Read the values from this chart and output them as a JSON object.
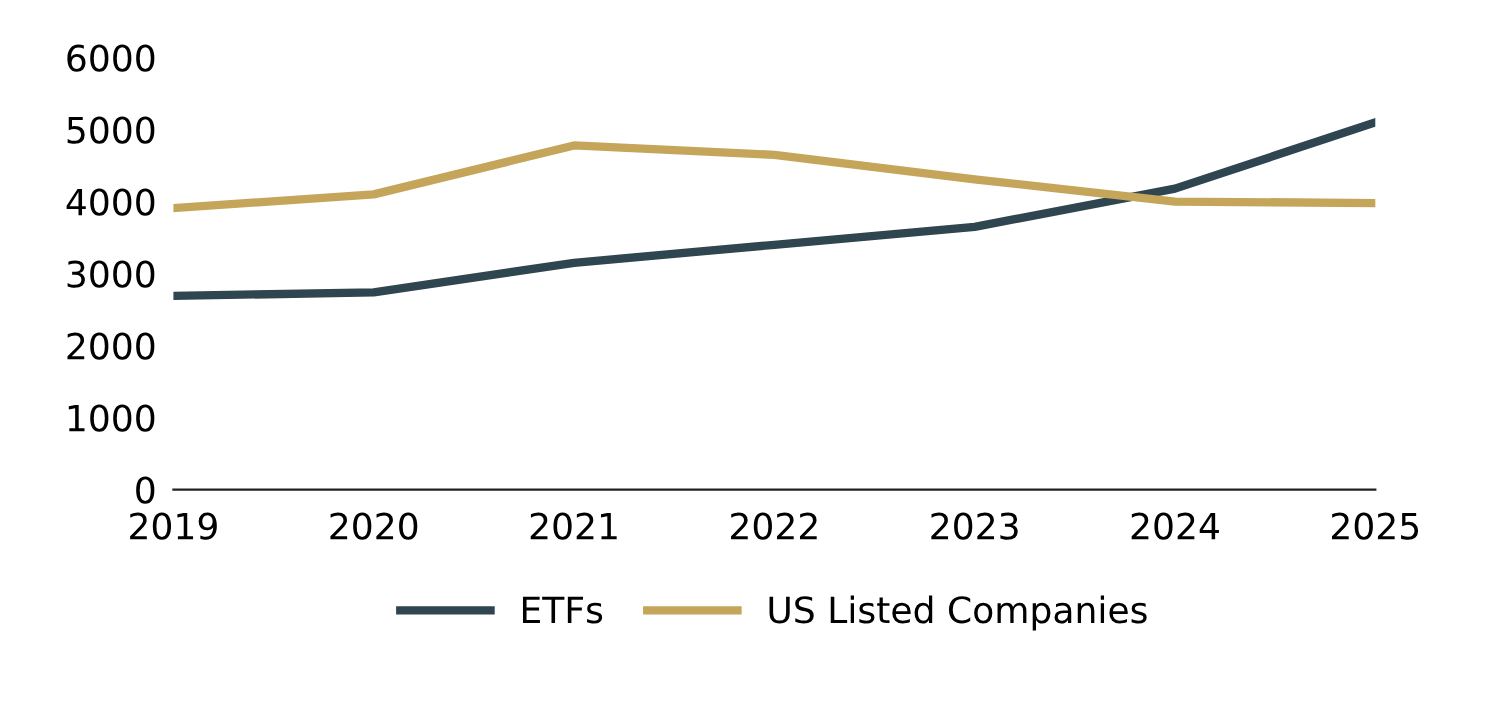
{
  "chart_data": {
    "type": "line",
    "categories": [
      "2019",
      "2020",
      "2021",
      "2022",
      "2023",
      "2024",
      "2025"
    ],
    "series": [
      {
        "name": "ETFs",
        "color": "#2f4550",
        "values": [
          2690,
          2740,
          3150,
          3400,
          3650,
          4180,
          5100
        ]
      },
      {
        "name": "US Listed Companies",
        "color": "#c4a55a",
        "values": [
          3910,
          4100,
          4780,
          4650,
          4310,
          4000,
          3980
        ]
      }
    ],
    "ylim": [
      0,
      6000
    ],
    "yticks": [
      0,
      1000,
      2000,
      3000,
      4000,
      5000,
      6000
    ],
    "grid": false,
    "legend": "bottom",
    "marker": "none",
    "line_style": "solid"
  }
}
